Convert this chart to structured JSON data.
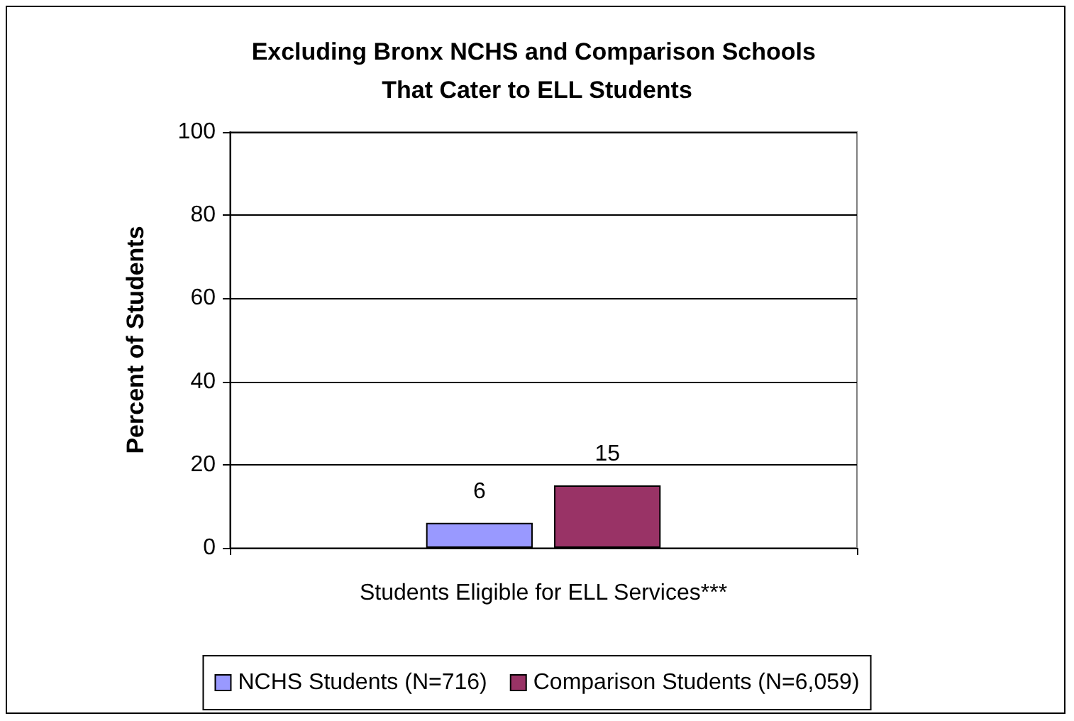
{
  "chart_data": {
    "type": "bar",
    "title": "Excluding Bronx NCHS and Comparison Schools That Cater to ELL Students",
    "ylabel": "Percent of Students",
    "categories": [
      "Students Eligible for ELL Services***"
    ],
    "series": [
      {
        "name": "NCHS Students (N=716)",
        "color": "#9999ff",
        "values": [
          6
        ]
      },
      {
        "name": "Comparison Students (N=6,059)",
        "color": "#993366",
        "values": [
          15
        ]
      }
    ],
    "ylim": [
      0,
      100
    ],
    "yticks": [
      0,
      20,
      40,
      60,
      80,
      100
    ],
    "grid": "y",
    "legend": "bottom",
    "data_labels": true
  }
}
